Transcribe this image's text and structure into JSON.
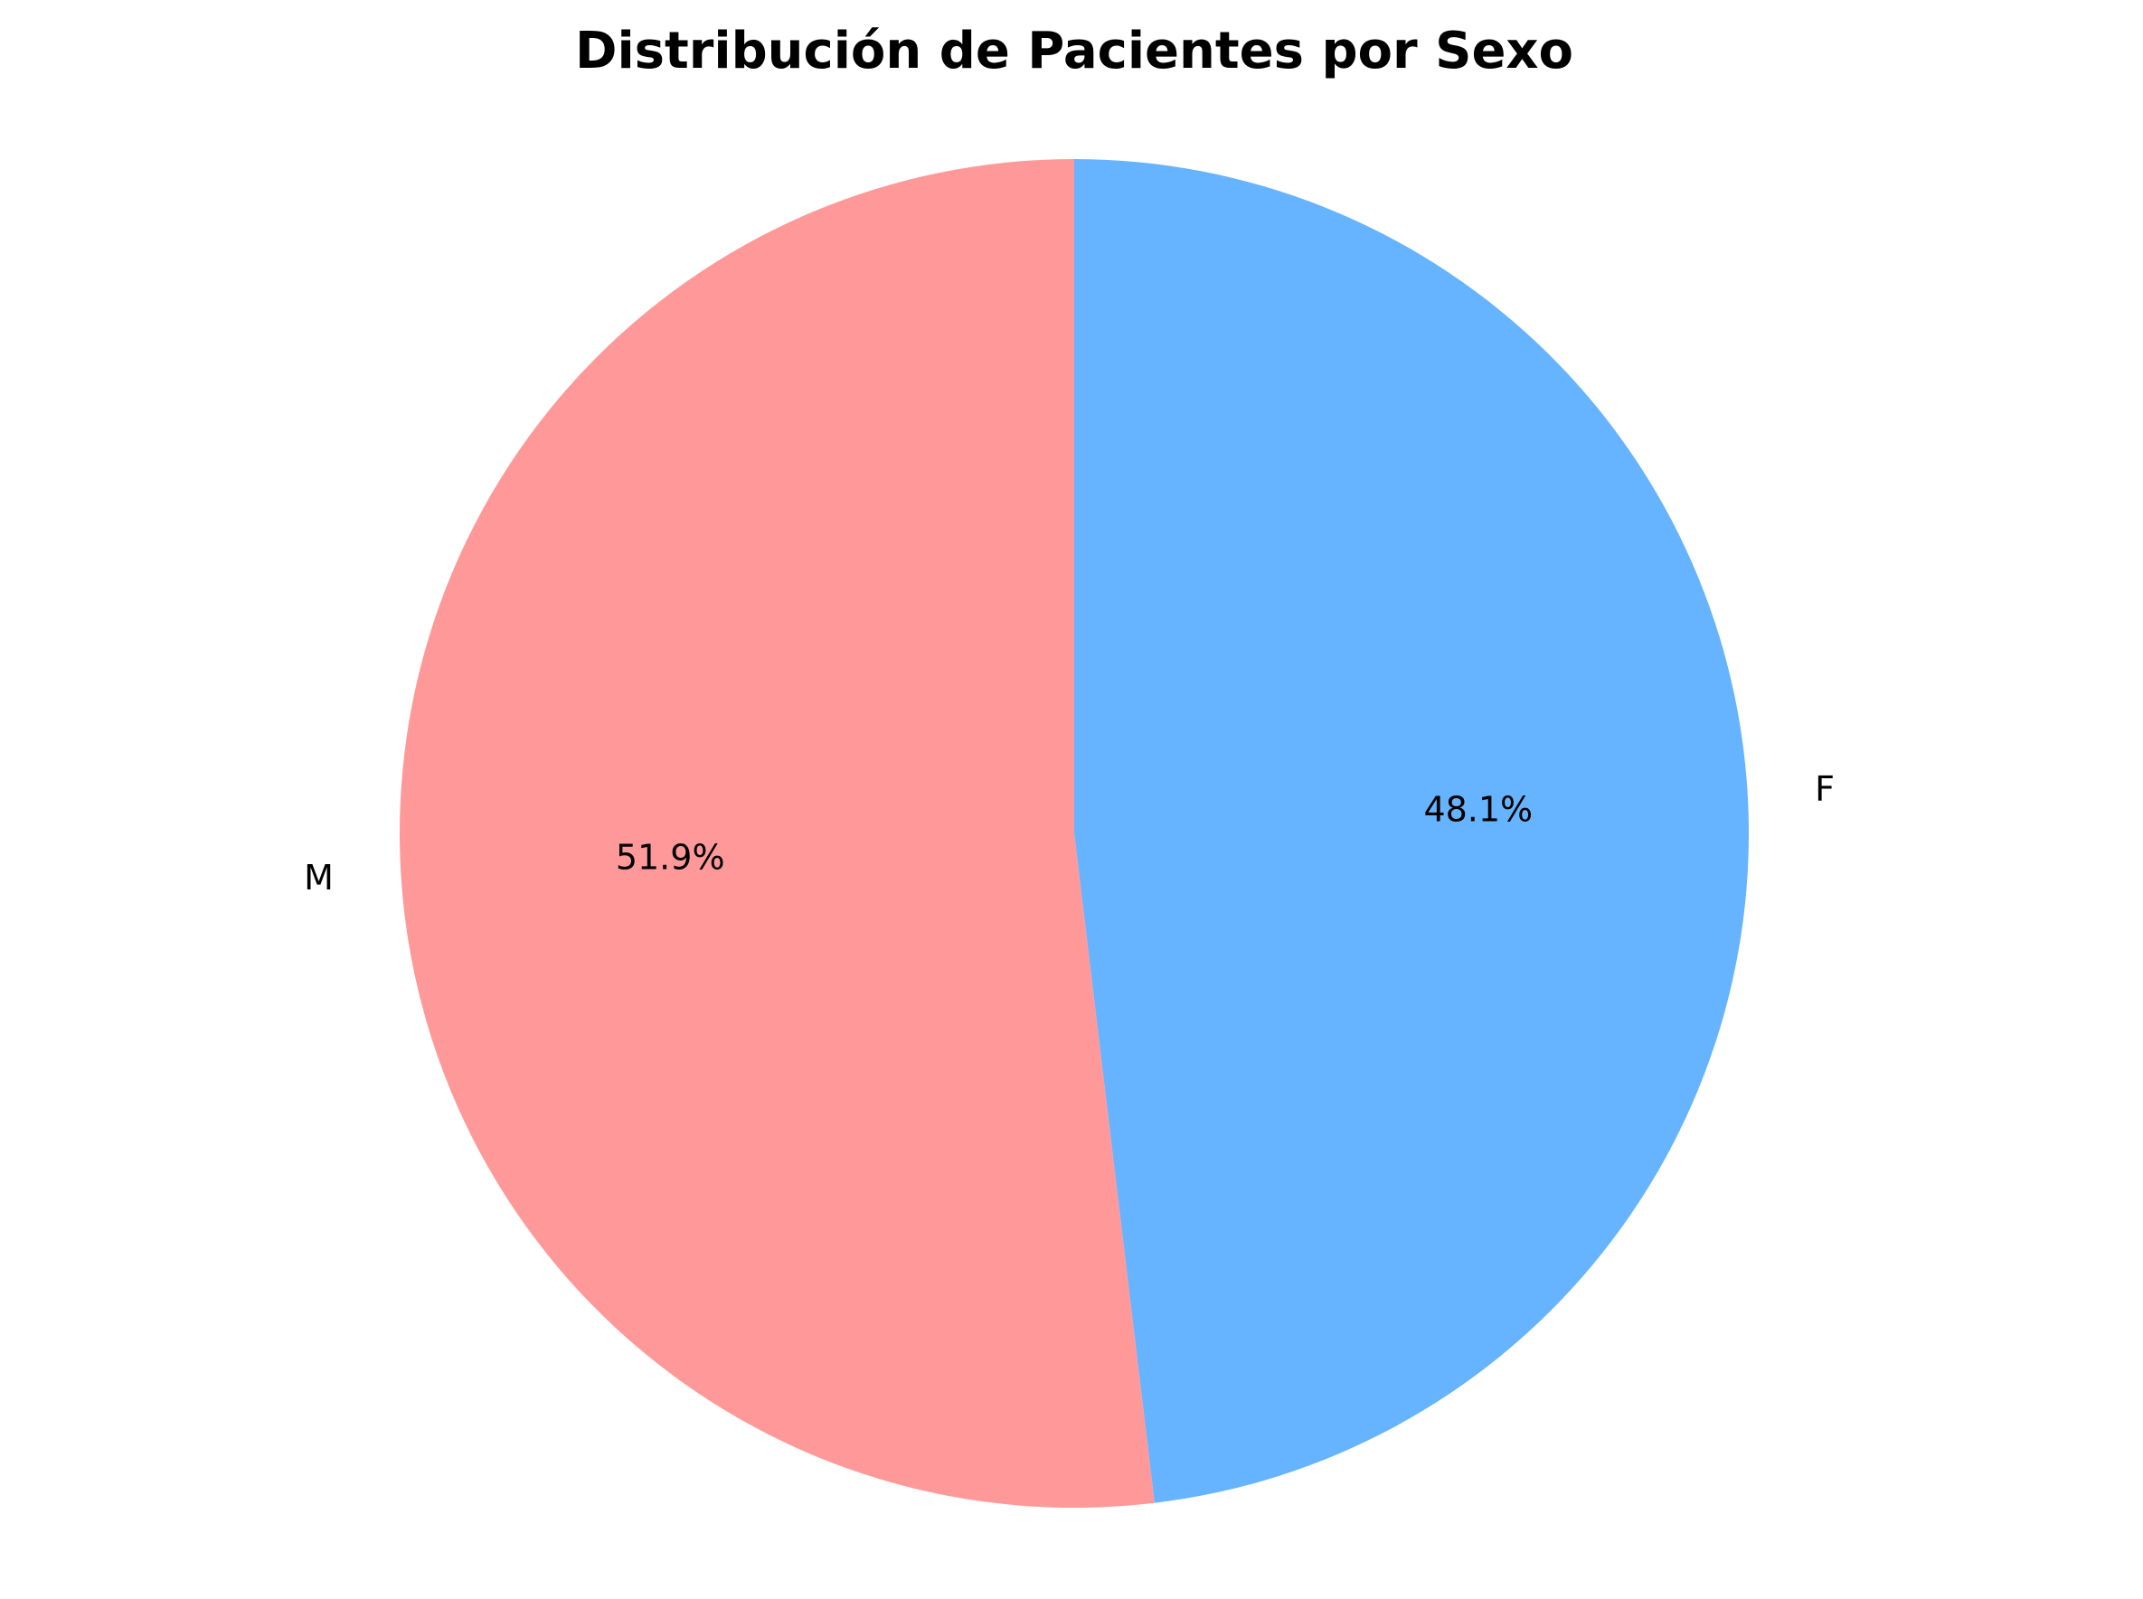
{
  "chart_data": {
    "type": "pie",
    "title": "Distribución de Pacientes por Sexo",
    "start_angle_deg": 90,
    "direction": "clockwise",
    "slices": [
      {
        "label": "F",
        "value": 48.1,
        "pct_label": "48.1%",
        "color": "#66b3ff"
      },
      {
        "label": "M",
        "value": 51.9,
        "pct_label": "51.9%",
        "color": "#ff9999"
      }
    ]
  }
}
